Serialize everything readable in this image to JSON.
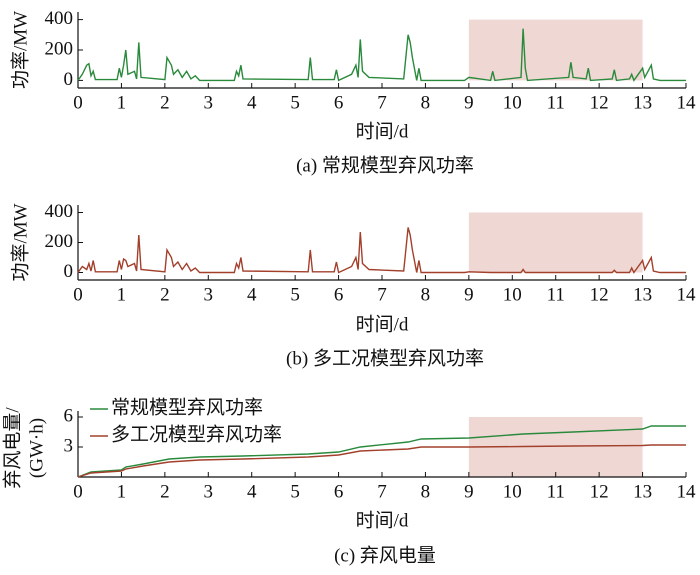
{
  "chart_data": [
    {
      "type": "line",
      "title": "(a)  常规模型弃风功率",
      "xlabel": "时间/d",
      "ylabel": "功率/MW",
      "color": "#2a8a3c",
      "xlim": [
        0,
        14
      ],
      "xticks": [
        0,
        1,
        2,
        3,
        4,
        5,
        6,
        7,
        8,
        9,
        10,
        11,
        12,
        13,
        14
      ],
      "ylim": [
        -50,
        450
      ],
      "yticks": [
        0,
        200,
        400
      ],
      "highlight": {
        "x": [
          9,
          13
        ],
        "y": [
          0,
          400
        ],
        "color": "#efd7d4"
      },
      "x": [
        0,
        0.1,
        0.2,
        0.25,
        0.3,
        0.35,
        0.4,
        0.9,
        0.95,
        1.0,
        1.05,
        1.1,
        1.15,
        1.3,
        1.35,
        1.4,
        1.45,
        2.0,
        2.05,
        2.15,
        2.2,
        2.3,
        2.4,
        2.5,
        2.6,
        2.7,
        2.8,
        3.6,
        3.65,
        3.7,
        3.75,
        3.8,
        5.3,
        5.35,
        5.4,
        5.9,
        5.95,
        6.0,
        6.3,
        6.4,
        6.45,
        6.5,
        6.55,
        6.7,
        7.5,
        7.6,
        7.65,
        7.7,
        7.8,
        7.85,
        7.9,
        8.9,
        9.0,
        9.5,
        9.55,
        9.6,
        10.2,
        10.25,
        10.3,
        10.35,
        11.3,
        11.35,
        11.4,
        11.7,
        11.75,
        11.8,
        12.3,
        12.35,
        12.4,
        12.7,
        12.75,
        12.8,
        13.0,
        13.05,
        13.2,
        13.25,
        13.4,
        14
      ],
      "values": [
        0,
        40,
        100,
        110,
        30,
        60,
        5,
        5,
        80,
        20,
        100,
        200,
        40,
        60,
        10,
        250,
        20,
        5,
        150,
        100,
        40,
        70,
        20,
        60,
        10,
        30,
        0,
        0,
        60,
        30,
        100,
        10,
        5,
        150,
        5,
        5,
        70,
        0,
        40,
        100,
        20,
        270,
        60,
        20,
        10,
        300,
        250,
        150,
        0,
        80,
        0,
        0,
        20,
        0,
        60,
        0,
        20,
        340,
        80,
        0,
        20,
        120,
        20,
        10,
        80,
        0,
        10,
        70,
        0,
        10,
        40,
        0,
        80,
        20,
        100,
        10,
        0,
        0
      ]
    },
    {
      "type": "line",
      "title": "(b)  多工况模型弃风功率",
      "xlabel": "时间/d",
      "ylabel": "功率/MW",
      "color": "#a3402c",
      "xlim": [
        0,
        14
      ],
      "xticks": [
        0,
        1,
        2,
        3,
        4,
        5,
        6,
        7,
        8,
        9,
        10,
        11,
        12,
        13,
        14
      ],
      "ylim": [
        -50,
        450
      ],
      "yticks": [
        0,
        200,
        400
      ],
      "highlight": {
        "x": [
          9,
          13
        ],
        "y": [
          0,
          400
        ],
        "color": "#efd7d4"
      },
      "x": [
        0,
        0.1,
        0.2,
        0.25,
        0.3,
        0.35,
        0.4,
        0.9,
        0.95,
        1.0,
        1.05,
        1.1,
        1.15,
        1.3,
        1.35,
        1.4,
        1.45,
        2.0,
        2.05,
        2.15,
        2.2,
        2.3,
        2.4,
        2.5,
        2.6,
        2.7,
        2.8,
        3.6,
        3.65,
        3.7,
        3.75,
        3.8,
        5.3,
        5.35,
        5.4,
        5.9,
        5.95,
        6.0,
        6.3,
        6.4,
        6.45,
        6.5,
        6.55,
        6.7,
        7.5,
        7.6,
        7.65,
        7.7,
        7.8,
        7.85,
        7.9,
        8.9,
        9.0,
        9.5,
        9.55,
        9.6,
        10.2,
        10.25,
        10.3,
        10.35,
        11.3,
        11.35,
        11.4,
        11.7,
        11.75,
        11.8,
        12.3,
        12.35,
        12.4,
        12.7,
        12.75,
        12.8,
        13.0,
        13.05,
        13.2,
        13.25,
        13.4,
        14
      ],
      "values": [
        0,
        40,
        20,
        60,
        10,
        80,
        5,
        5,
        80,
        20,
        90,
        80,
        40,
        60,
        10,
        250,
        20,
        5,
        150,
        100,
        40,
        70,
        20,
        60,
        10,
        30,
        0,
        0,
        60,
        30,
        100,
        10,
        5,
        150,
        5,
        5,
        70,
        0,
        40,
        100,
        20,
        270,
        60,
        20,
        10,
        300,
        250,
        150,
        0,
        80,
        0,
        0,
        5,
        0,
        0,
        0,
        0,
        20,
        0,
        0,
        0,
        0,
        0,
        0,
        0,
        0,
        0,
        15,
        0,
        0,
        30,
        0,
        80,
        20,
        100,
        10,
        0,
        0
      ]
    },
    {
      "type": "line",
      "title": "(c)  弃风电量",
      "xlabel": "时间/d",
      "ylabel": [
        "弃风电量/",
        "(GW·h)"
      ],
      "xlim": [
        0,
        14
      ],
      "xticks": [
        0,
        1,
        2,
        3,
        4,
        5,
        6,
        7,
        8,
        9,
        10,
        11,
        12,
        13,
        14
      ],
      "ylim": [
        0,
        6.6
      ],
      "yticks": [
        3,
        6
      ],
      "legend": "upper left",
      "highlight": {
        "x": [
          9,
          13
        ],
        "y": [
          0,
          6
        ],
        "color": "#efd7d4"
      },
      "x": [
        0,
        0.3,
        1.0,
        1.1,
        1.5,
        2.1,
        2.8,
        3.8,
        5.3,
        6.0,
        6.5,
        7.6,
        7.9,
        9.0,
        10.25,
        11.4,
        13.0,
        13.2,
        14
      ],
      "series": [
        {
          "name": "常规模型弃风功率",
          "color": "#2a8a3c",
          "values": [
            0,
            0.5,
            0.7,
            1.0,
            1.3,
            1.8,
            2.0,
            2.1,
            2.3,
            2.5,
            3.0,
            3.5,
            3.8,
            3.9,
            4.3,
            4.5,
            4.8,
            5.1,
            5.1
          ]
        },
        {
          "name": "多工况模型弃风功率",
          "color": "#a3402c",
          "values": [
            0,
            0.4,
            0.6,
            0.8,
            1.1,
            1.5,
            1.7,
            1.8,
            2.0,
            2.2,
            2.6,
            2.8,
            3.0,
            3.0,
            3.05,
            3.1,
            3.15,
            3.2,
            3.2
          ]
        }
      ]
    }
  ]
}
